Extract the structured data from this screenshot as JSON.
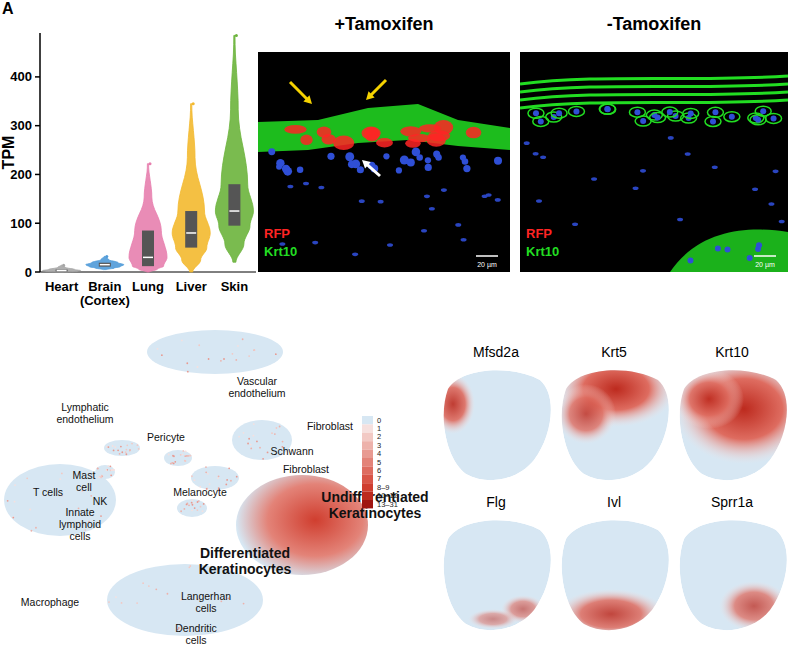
{
  "chart_data": {
    "type": "violin",
    "panel_letter": "A",
    "ylabel": "TPM",
    "categories": [
      "Heart",
      "Brain (Cortex)",
      "Lung",
      "Liver",
      "Skin"
    ],
    "values": [
      3,
      15,
      30,
      80,
      125
    ],
    "q1": [
      1,
      11,
      12,
      50,
      95
    ],
    "q3": [
      5,
      19,
      85,
      125,
      180
    ],
    "min": [
      0,
      5,
      0,
      0,
      20
    ],
    "max": [
      14,
      32,
      222,
      345,
      485
    ],
    "colors": [
      "#a6a6a6",
      "#4f9ad8",
      "#e77fae",
      "#f3b92f",
      "#6cb43c"
    ],
    "ylim": [
      0,
      490
    ],
    "yticks": [
      0,
      100,
      200,
      300,
      400
    ]
  },
  "microscopy": {
    "titles": [
      "+Tamoxifen",
      "-Tamoxifen"
    ],
    "channels": [
      {
        "label": "RFP",
        "color": "#ff2424"
      },
      {
        "label": "Krt10",
        "color": "#22dd22"
      }
    ],
    "scale_bar": "20 µm"
  },
  "umap": {
    "clusters": [
      "Vascular endothelium",
      "Lymphatic endothelium",
      "Pericyte",
      "Fibroblast",
      "Schwann",
      "Fibroblast",
      "Mast cell",
      "T cells",
      "NK",
      "Innate lymphoid cells",
      "Melanocyte",
      "Undifferentiated Keratinocytes",
      "Differentiated Keratinocytes",
      "Macrophage",
      "Langerhan cells",
      "Dendritic cells"
    ],
    "color_scale": {
      "labels": [
        "0",
        "1",
        "2",
        "3",
        "4",
        "5",
        "6",
        "7",
        "8–9",
        "10–12",
        "13–31"
      ],
      "colors": [
        "#d7e7f3",
        "#f6e0de",
        "#f2c9c4",
        "#edb2ab",
        "#e89a91",
        "#e38378",
        "#de6c60",
        "#d95547",
        "#d03e2f",
        "#bd2a1e",
        "#a01510"
      ]
    }
  },
  "genes": {
    "names": [
      "Mfsd2a",
      "Krt5",
      "Krt10",
      "Flg",
      "Ivl",
      "Sprr1a"
    ]
  }
}
